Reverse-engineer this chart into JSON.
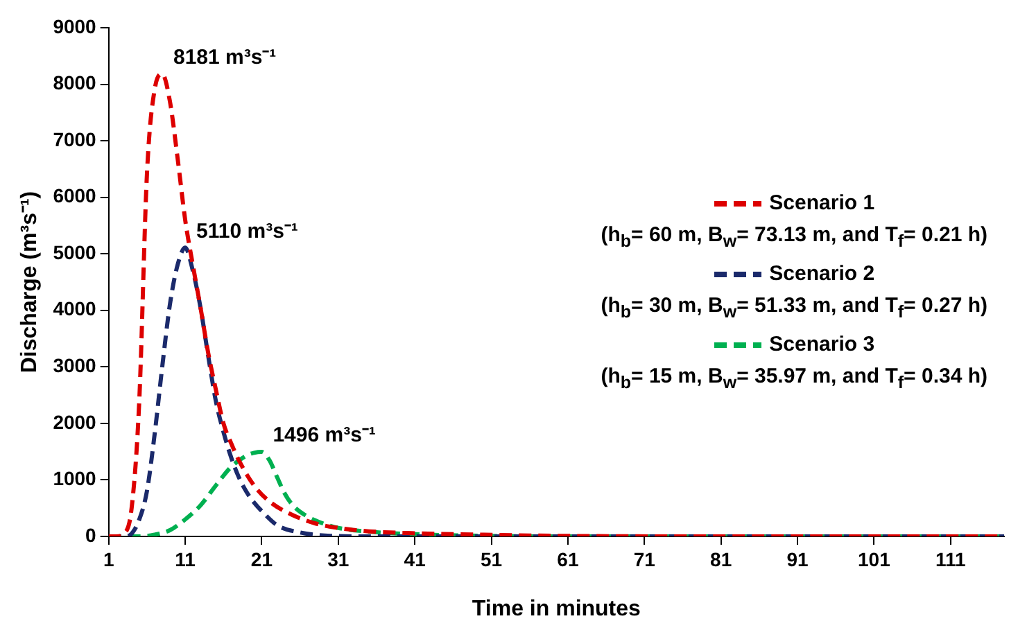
{
  "chart_data": {
    "type": "line",
    "xlabel": "Time in minutes",
    "ylabel": "Discharge (m³s⁻¹)",
    "xlim": [
      1,
      118
    ],
    "xticks": [
      1,
      11,
      21,
      31,
      41,
      51,
      61,
      71,
      81,
      91,
      101,
      111
    ],
    "ylim": [
      0,
      9000
    ],
    "yticks": [
      0,
      1000,
      2000,
      3000,
      4000,
      5000,
      6000,
      7000,
      8000,
      9000
    ],
    "grid": false,
    "legend": "right",
    "line_style": "dashed",
    "marker": "none",
    "series": [
      {
        "name": "Scenario 1",
        "color": "#dd0000",
        "x": [
          1,
          2,
          3,
          4,
          5,
          6,
          7,
          8,
          9,
          10,
          11,
          12,
          13,
          14,
          15,
          16,
          17,
          18,
          20,
          22,
          25,
          28,
          31,
          35,
          40,
          50,
          60,
          80,
          100,
          118
        ],
        "values": [
          0,
          0,
          50,
          500,
          2400,
          6400,
          7900,
          8181,
          7700,
          6700,
          5600,
          4800,
          4050,
          3250,
          2600,
          2000,
          1650,
          1350,
          900,
          620,
          380,
          230,
          150,
          90,
          60,
          30,
          10,
          0,
          0,
          0
        ]
      },
      {
        "name": "Scenario 2",
        "color": "#1b2a6b",
        "x": [
          1,
          2,
          3,
          4,
          5,
          6,
          7,
          8,
          9,
          10,
          11,
          12,
          13,
          14,
          15,
          16,
          17,
          18,
          19,
          20,
          21,
          23,
          26,
          30,
          35,
          60,
          118
        ],
        "values": [
          0,
          0,
          0,
          50,
          300,
          800,
          1800,
          3000,
          4100,
          4800,
          5110,
          4700,
          4050,
          3200,
          2400,
          1850,
          1400,
          1050,
          790,
          600,
          450,
          200,
          70,
          10,
          0,
          0,
          0
        ]
      },
      {
        "name": "Scenario 3",
        "color": "#00b050",
        "x": [
          1,
          5,
          7,
          9,
          11,
          13,
          15,
          17,
          19,
          20,
          21,
          22,
          23,
          24,
          25,
          27,
          29,
          31,
          35,
          40,
          50,
          60,
          118
        ],
        "values": [
          0,
          0,
          30,
          110,
          300,
          550,
          900,
          1230,
          1430,
          1480,
          1496,
          1350,
          1050,
          760,
          560,
          350,
          230,
          150,
          85,
          45,
          10,
          0,
          0
        ]
      }
    ],
    "annotations": [
      {
        "text": "8181 m³s⁻¹",
        "x": 8,
        "y": 8181
      },
      {
        "text": "5110 m³s⁻¹",
        "x": 11,
        "y": 5110
      },
      {
        "text": "1496 m³s⁻¹",
        "x": 21,
        "y": 1496
      },
      "(h$_{b}$= 60 m, B$_{w}$= 73.13 m, and T$_{f}$= 0.21 h)",
      "(h$_{b}$= 30 m, B$_{w}$= 51.33 m, and T$_{f}$= 0.27 h)",
      "(h$_{b}$= 15 m, B$_{w}$= 35.97 m, and T$_{f}$= 0.34 h)"
    ]
  }
}
